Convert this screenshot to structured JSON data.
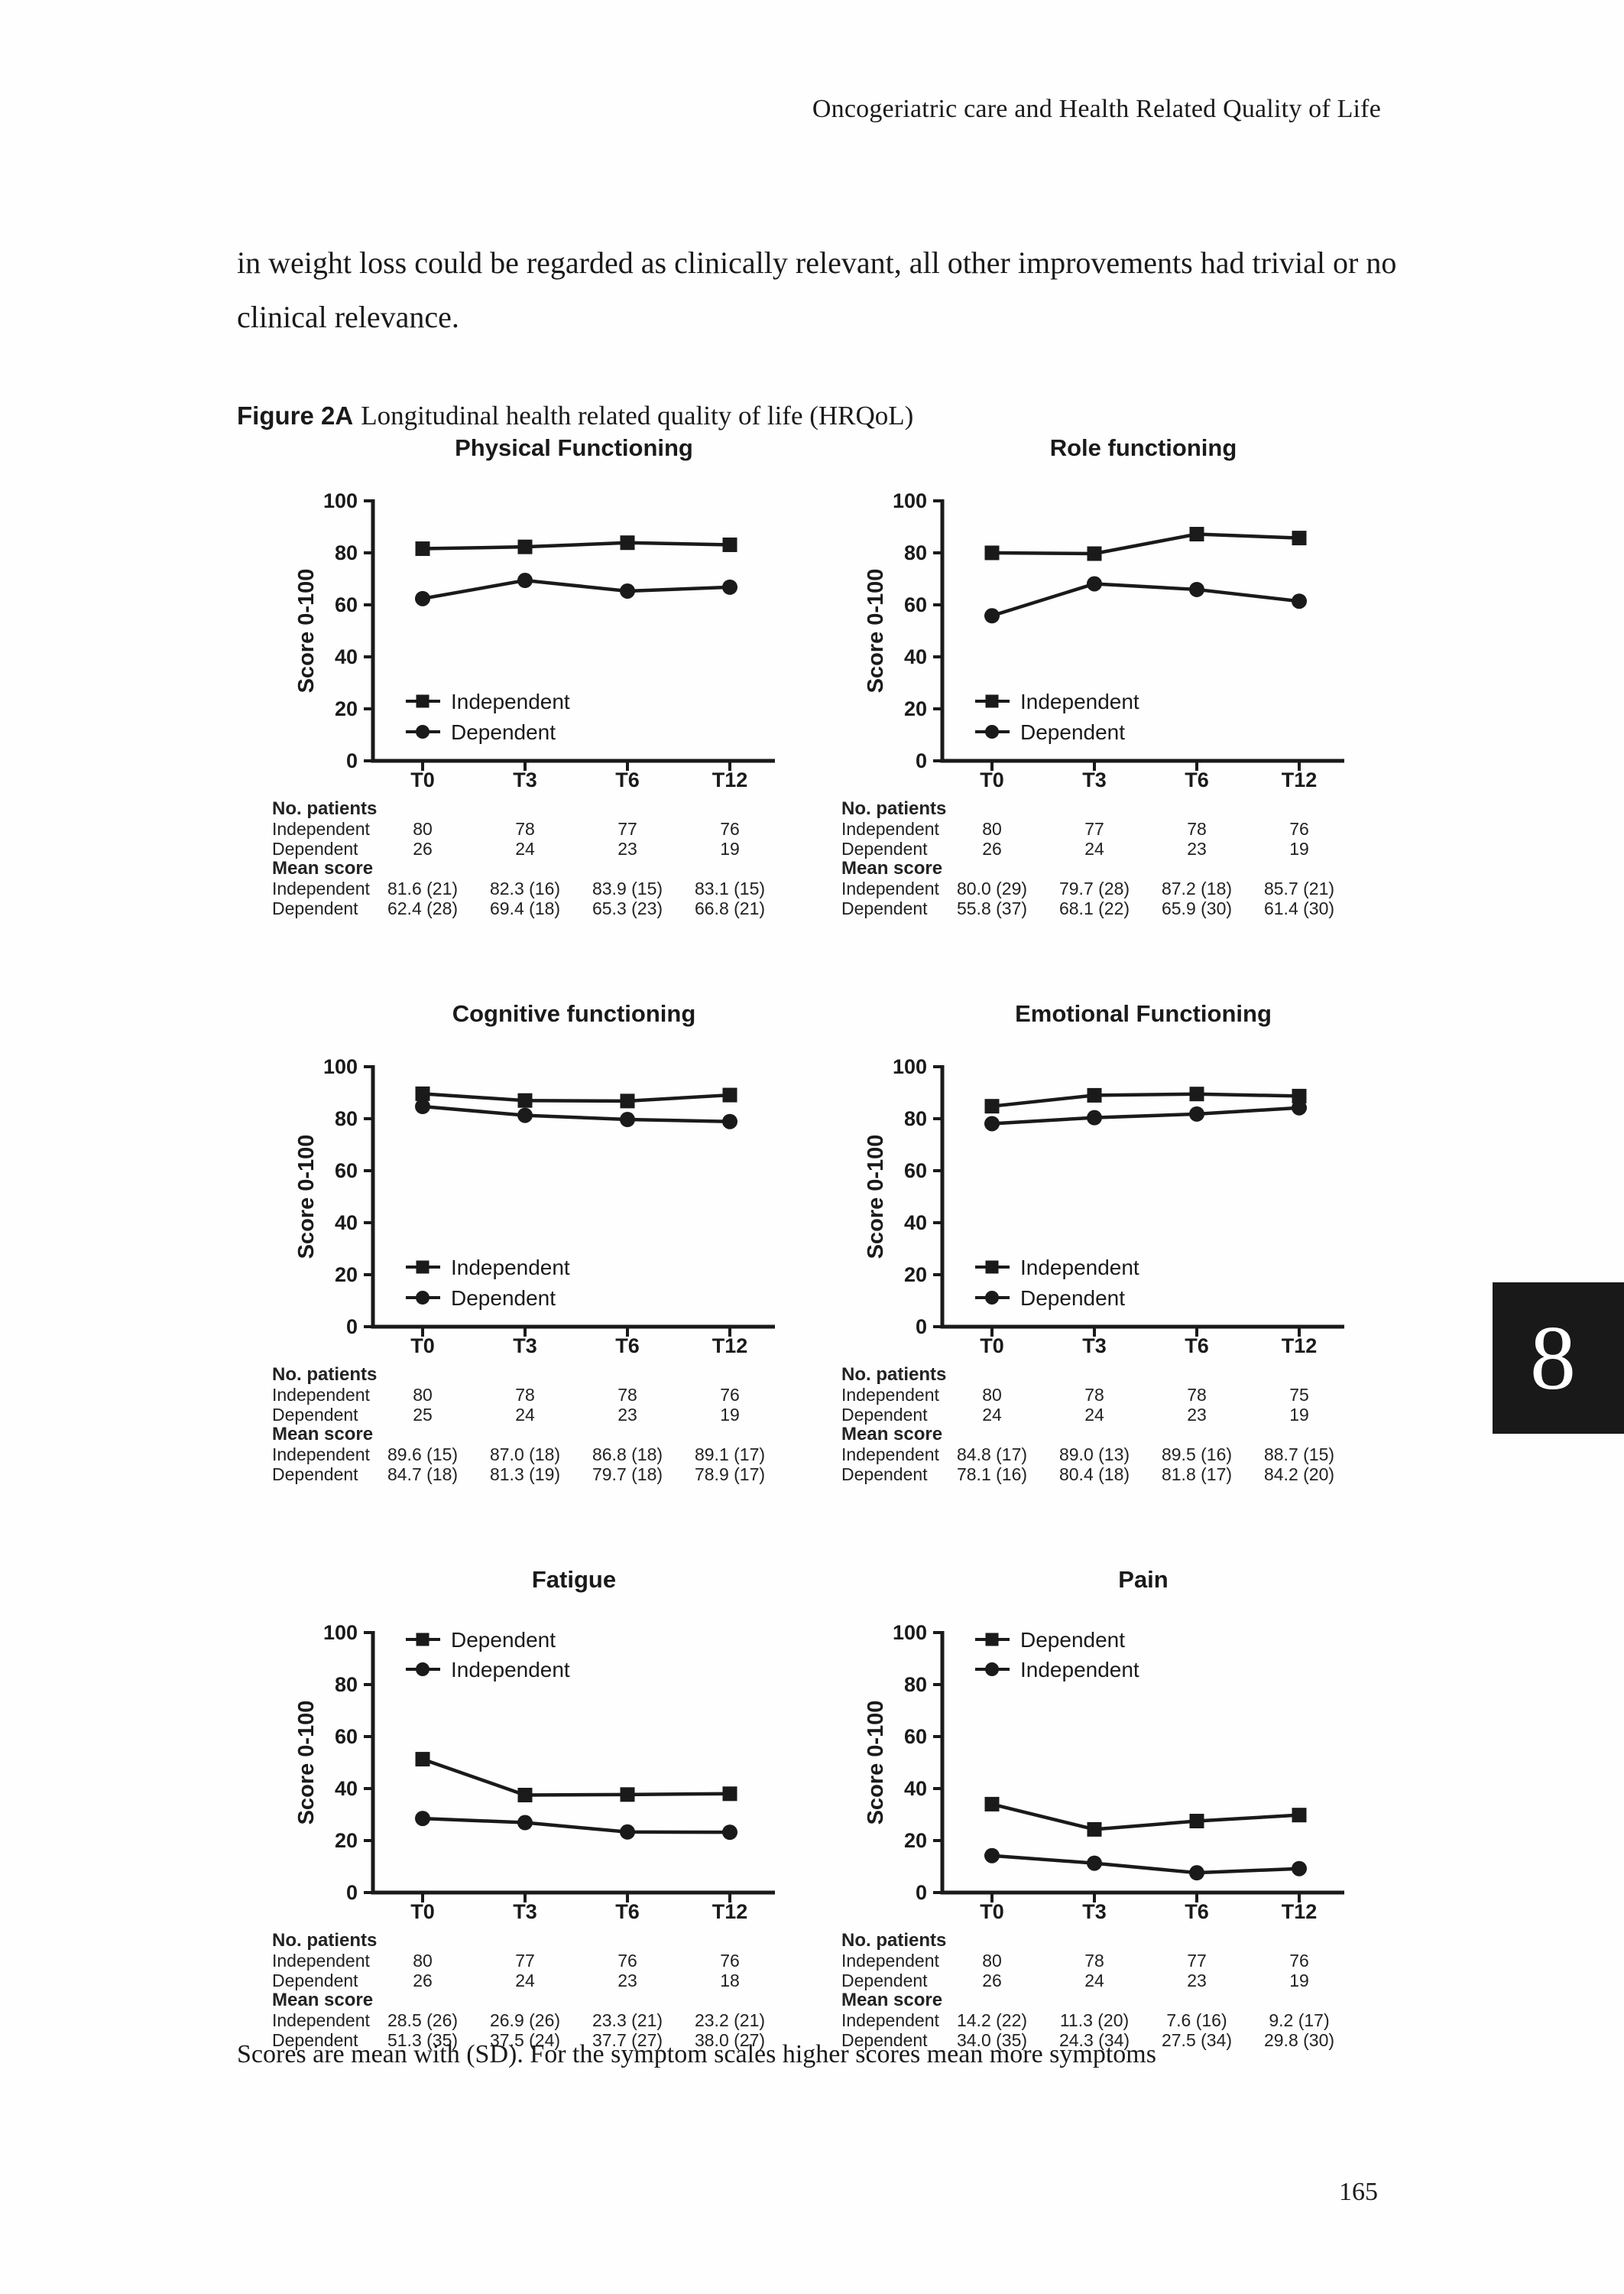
{
  "page": {
    "running_header": "Oncogeriatric care and Health Related Quality of Life",
    "paragraph": "in weight loss could be regarded as clinically relevant, all other improvements had trivial or no clinical relevance.",
    "figure_label": "Figure 2A",
    "figure_caption": "Longitudinal health related quality of life (HRQoL)",
    "footnote": "Scores are mean with (SD). For the symptom scales higher scores mean more symptoms",
    "page_number": "165",
    "chapter_tab": "8"
  },
  "ink_color": "#1a1a1a",
  "chart_data": [
    {
      "type": "line",
      "title": "Physical Functioning",
      "ylabel": "Score 0-100",
      "ylim": [
        0,
        100
      ],
      "yticks": [
        0,
        20,
        40,
        60,
        80,
        100
      ],
      "categories": [
        "T0",
        "T3",
        "T6",
        "T12"
      ],
      "legend_position": "bottom-left",
      "series": [
        {
          "name": "Independent",
          "marker": "square",
          "values": [
            81.6,
            82.3,
            83.9,
            83.1
          ]
        },
        {
          "name": "Dependent",
          "marker": "circle",
          "values": [
            62.4,
            69.4,
            65.3,
            66.8
          ]
        }
      ],
      "table": {
        "sections": [
          {
            "label": "No. patients",
            "rows": [
              {
                "label": "Independent",
                "values": [
                  "80",
                  "78",
                  "77",
                  "76"
                ]
              },
              {
                "label": "Dependent",
                "values": [
                  "26",
                  "24",
                  "23",
                  "19"
                ]
              }
            ]
          },
          {
            "label": "Mean score",
            "rows": [
              {
                "label": "Independent",
                "values": [
                  "81.6 (21)",
                  "82.3 (16)",
                  "83.9 (15)",
                  "83.1 (15)"
                ]
              },
              {
                "label": "Dependent",
                "values": [
                  "62.4 (28)",
                  "69.4 (18)",
                  "65.3 (23)",
                  "66.8 (21)"
                ]
              }
            ]
          }
        ]
      }
    },
    {
      "type": "line",
      "title": "Role functioning",
      "ylabel": "Score 0-100",
      "ylim": [
        0,
        100
      ],
      "yticks": [
        0,
        20,
        40,
        60,
        80,
        100
      ],
      "categories": [
        "T0",
        "T3",
        "T6",
        "T12"
      ],
      "legend_position": "bottom-left",
      "series": [
        {
          "name": "Independent",
          "marker": "square",
          "values": [
            80.0,
            79.7,
            87.2,
            85.7
          ]
        },
        {
          "name": "Dependent",
          "marker": "circle",
          "values": [
            55.8,
            68.1,
            65.9,
            61.4
          ]
        }
      ],
      "table": {
        "sections": [
          {
            "label": "No. patients",
            "rows": [
              {
                "label": "Independent",
                "values": [
                  "80",
                  "77",
                  "78",
                  "76"
                ]
              },
              {
                "label": "Dependent",
                "values": [
                  "26",
                  "24",
                  "23",
                  "19"
                ]
              }
            ]
          },
          {
            "label": "Mean score",
            "rows": [
              {
                "label": "Independent",
                "values": [
                  "80.0 (29)",
                  "79.7 (28)",
                  "87.2 (18)",
                  "85.7 (21)"
                ]
              },
              {
                "label": "Dependent",
                "values": [
                  "55.8 (37)",
                  "68.1 (22)",
                  "65.9 (30)",
                  "61.4 (30)"
                ]
              }
            ]
          }
        ]
      }
    },
    {
      "type": "line",
      "title": "Cognitive functioning",
      "ylabel": "Score 0-100",
      "ylim": [
        0,
        100
      ],
      "yticks": [
        0,
        20,
        40,
        60,
        80,
        100
      ],
      "categories": [
        "T0",
        "T3",
        "T6",
        "T12"
      ],
      "legend_position": "bottom-left",
      "series": [
        {
          "name": "Independent",
          "marker": "square",
          "values": [
            89.6,
            87.0,
            86.8,
            89.1
          ]
        },
        {
          "name": "Dependent",
          "marker": "circle",
          "values": [
            84.7,
            81.3,
            79.7,
            78.9
          ]
        }
      ],
      "table": {
        "sections": [
          {
            "label": "No. patients",
            "rows": [
              {
                "label": "Independent",
                "values": [
                  "80",
                  "78",
                  "78",
                  "76"
                ]
              },
              {
                "label": "Dependent",
                "values": [
                  "25",
                  "24",
                  "23",
                  "19"
                ]
              }
            ]
          },
          {
            "label": "Mean score",
            "rows": [
              {
                "label": "Independent",
                "values": [
                  "89.6 (15)",
                  "87.0 (18)",
                  "86.8 (18)",
                  "89.1 (17)"
                ]
              },
              {
                "label": "Dependent",
                "values": [
                  "84.7 (18)",
                  "81.3 (19)",
                  "79.7 (18)",
                  "78.9 (17)"
                ]
              }
            ]
          }
        ]
      }
    },
    {
      "type": "line",
      "title": "Emotional Functioning",
      "ylabel": "Score 0-100",
      "ylim": [
        0,
        100
      ],
      "yticks": [
        0,
        20,
        40,
        60,
        80,
        100
      ],
      "categories": [
        "T0",
        "T3",
        "T6",
        "T12"
      ],
      "legend_position": "bottom-left",
      "series": [
        {
          "name": "Independent",
          "marker": "square",
          "values": [
            84.8,
            89.0,
            89.5,
            88.7
          ]
        },
        {
          "name": "Dependent",
          "marker": "circle",
          "values": [
            78.1,
            80.4,
            81.8,
            84.2
          ]
        }
      ],
      "table": {
        "sections": [
          {
            "label": "No. patients",
            "rows": [
              {
                "label": "Independent",
                "values": [
                  "80",
                  "78",
                  "78",
                  "75"
                ]
              },
              {
                "label": "Dependent",
                "values": [
                  "24",
                  "24",
                  "23",
                  "19"
                ]
              }
            ]
          },
          {
            "label": "Mean score",
            "rows": [
              {
                "label": "Independent",
                "values": [
                  "84.8 (17)",
                  "89.0 (13)",
                  "89.5 (16)",
                  "88.7 (15)"
                ]
              },
              {
                "label": "Dependent",
                "values": [
                  "78.1 (16)",
                  "80.4 (18)",
                  "81.8 (17)",
                  "84.2 (20)"
                ]
              }
            ]
          }
        ]
      }
    },
    {
      "type": "line",
      "title": "Fatigue",
      "ylabel": "Score 0-100",
      "ylim": [
        0,
        100
      ],
      "yticks": [
        0,
        20,
        40,
        60,
        80,
        100
      ],
      "categories": [
        "T0",
        "T3",
        "T6",
        "T12"
      ],
      "legend_position": "top-left",
      "series": [
        {
          "name": "Dependent",
          "marker": "square",
          "values": [
            51.3,
            37.5,
            37.7,
            38.0
          ]
        },
        {
          "name": "Independent",
          "marker": "circle",
          "values": [
            28.5,
            26.9,
            23.3,
            23.2
          ]
        }
      ],
      "table": {
        "sections": [
          {
            "label": "No. patients",
            "rows": [
              {
                "label": "Independent",
                "values": [
                  "80",
                  "77",
                  "76",
                  "76"
                ]
              },
              {
                "label": "Dependent",
                "values": [
                  "26",
                  "24",
                  "23",
                  "18"
                ]
              }
            ]
          },
          {
            "label": "Mean score",
            "rows": [
              {
                "label": "Independent",
                "values": [
                  "28.5 (26)",
                  "26.9 (26)",
                  "23.3 (21)",
                  "23.2 (21)"
                ]
              },
              {
                "label": "Dependent",
                "values": [
                  "51.3 (35)",
                  "37.5 (24)",
                  "37.7 (27)",
                  "38.0 (27)"
                ]
              }
            ]
          }
        ]
      }
    },
    {
      "type": "line",
      "title": "Pain",
      "ylabel": "Score 0-100",
      "ylim": [
        0,
        100
      ],
      "yticks": [
        0,
        20,
        40,
        60,
        80,
        100
      ],
      "categories": [
        "T0",
        "T3",
        "T6",
        "T12"
      ],
      "legend_position": "top-left",
      "series": [
        {
          "name": "Dependent",
          "marker": "square",
          "values": [
            34.0,
            24.3,
            27.5,
            29.8
          ]
        },
        {
          "name": "Independent",
          "marker": "circle",
          "values": [
            14.2,
            11.3,
            7.6,
            9.2
          ]
        }
      ],
      "table": {
        "sections": [
          {
            "label": "No. patients",
            "rows": [
              {
                "label": "Independent",
                "values": [
                  "80",
                  "78",
                  "77",
                  "76"
                ]
              },
              {
                "label": "Dependent",
                "values": [
                  "26",
                  "24",
                  "23",
                  "19"
                ]
              }
            ]
          },
          {
            "label": "Mean score",
            "rows": [
              {
                "label": "Independent",
                "values": [
                  "14.2 (22)",
                  "11.3 (20)",
                  "7.6 (16)",
                  "9.2 (17)"
                ]
              },
              {
                "label": "Dependent",
                "values": [
                  "34.0 (35)",
                  "24.3 (34)",
                  "27.5 (34)",
                  "29.8 (30)"
                ]
              }
            ]
          }
        ]
      }
    }
  ]
}
